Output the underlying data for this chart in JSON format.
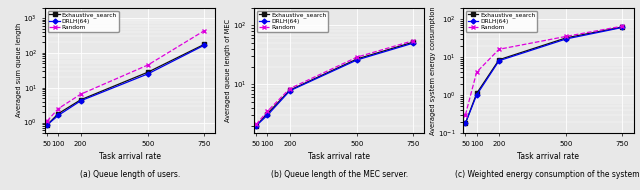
{
  "x": [
    50,
    100,
    200,
    500,
    750
  ],
  "plot1": {
    "exhaustive": [
      0.85,
      1.8,
      4.5,
      28.0,
      175.0
    ],
    "drlh": [
      0.85,
      1.6,
      4.2,
      25.0,
      165.0
    ],
    "random": [
      1.1,
      2.5,
      6.5,
      45.0,
      430.0
    ],
    "ylabel": "Averaged sum queue length",
    "ylim": [
      0.5,
      2000
    ],
    "caption": "(a) Queue length of users."
  },
  "plot2": {
    "exhaustive": [
      2.0,
      3.2,
      8.0,
      27.0,
      52.0
    ],
    "drlh": [
      2.0,
      3.0,
      7.8,
      26.0,
      50.0
    ],
    "random": [
      2.1,
      3.5,
      8.5,
      29.0,
      55.0
    ],
    "ylabel": "Averaged queue length of MEC",
    "ylim": [
      1.5,
      200
    ],
    "caption": "(b) Queue length of the MEC server."
  },
  "plot3": {
    "exhaustive": [
      0.18,
      1.1,
      8.5,
      32.0,
      62.0
    ],
    "drlh": [
      0.18,
      1.0,
      8.0,
      30.0,
      60.0
    ],
    "random": [
      0.3,
      4.0,
      16.0,
      35.0,
      65.0
    ],
    "ylabel": "Averaged system energy consumption",
    "ylim": [
      0.1,
      200
    ],
    "caption": "(c) Weighted energy consumption of the system."
  },
  "xlabel": "Task arrival rate",
  "bg_color": "#e8e8e8",
  "colors": {
    "exhaustive": "#111111",
    "drlh": "#0000ee",
    "random": "#dd00dd"
  },
  "legend_labels": [
    "Exhaustive_search",
    "DRLH(64)",
    "Random"
  ],
  "marker_exhaustive": "s",
  "marker_drlh": "D",
  "marker_random": "x",
  "xticks": [
    50,
    100,
    200,
    500,
    750
  ],
  "xtick_labels": [
    "50",
    "100",
    "200",
    "500",
    "750"
  ]
}
